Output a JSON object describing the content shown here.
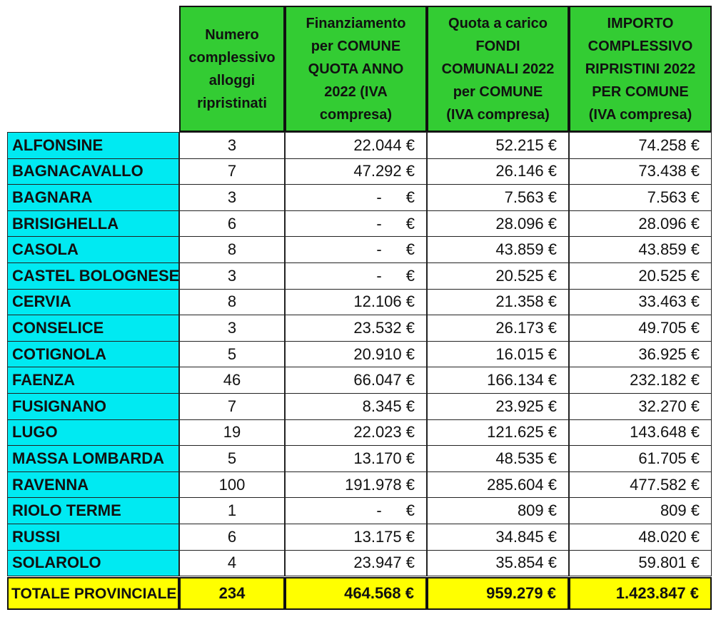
{
  "headers": [
    "",
    "Numero\ncomplessivo\nalloggi\nripristinati",
    "Finanziamento\nper COMUNE\nQUOTA ANNO\n2022 (IVA\ncompresa)",
    "Quota a carico\nFONDI\nCOMUNALI 2022\nper COMUNE\n(IVA compresa)",
    "IMPORTO\nCOMPLESSIVO\nRIPRISTINI 2022\nPER COMUNE\n(IVA compresa)"
  ],
  "rows": [
    {
      "comune": "ALFONSINE",
      "alloggi": "3",
      "finanziamento": "22.044 €",
      "quota": "52.215 €",
      "importo": "74.258 €"
    },
    {
      "comune": "BAGNACAVALLO",
      "alloggi": "7",
      "finanziamento": "47.292 €",
      "quota": "26.146 €",
      "importo": "73.438 €"
    },
    {
      "comune": "BAGNARA",
      "alloggi": "3",
      "finanziamento": "-",
      "quota": "7.563 €",
      "importo": "7.563 €"
    },
    {
      "comune": "BRISIGHELLA",
      "alloggi": "6",
      "finanziamento": "-",
      "quota": "28.096 €",
      "importo": "28.096 €"
    },
    {
      "comune": "CASOLA",
      "alloggi": "8",
      "finanziamento": "-",
      "quota": "43.859 €",
      "importo": "43.859 €"
    },
    {
      "comune": "CASTEL BOLOGNESE",
      "alloggi": "3",
      "finanziamento": "-",
      "quota": "20.525 €",
      "importo": "20.525 €"
    },
    {
      "comune": "CERVIA",
      "alloggi": "8",
      "finanziamento": "12.106 €",
      "quota": "21.358 €",
      "importo": "33.463 €"
    },
    {
      "comune": "CONSELICE",
      "alloggi": "3",
      "finanziamento": "23.532 €",
      "quota": "26.173 €",
      "importo": "49.705 €"
    },
    {
      "comune": "COTIGNOLA",
      "alloggi": "5",
      "finanziamento": "20.910 €",
      "quota": "16.015 €",
      "importo": "36.925 €"
    },
    {
      "comune": "FAENZA",
      "alloggi": "46",
      "finanziamento": "66.047 €",
      "quota": "166.134 €",
      "importo": "232.182 €"
    },
    {
      "comune": "FUSIGNANO",
      "alloggi": "7",
      "finanziamento": "8.345 €",
      "quota": "23.925 €",
      "importo": "32.270 €"
    },
    {
      "comune": "LUGO",
      "alloggi": "19",
      "finanziamento": "22.023 €",
      "quota": "121.625 €",
      "importo": "143.648 €"
    },
    {
      "comune": "MASSA LOMBARDA",
      "alloggi": "5",
      "finanziamento": "13.170 €",
      "quota": "48.535 €",
      "importo": "61.705 €"
    },
    {
      "comune": "RAVENNA",
      "alloggi": "100",
      "finanziamento": "191.978 €",
      "quota": "285.604 €",
      "importo": "477.582 €"
    },
    {
      "comune": "RIOLO TERME",
      "alloggi": "1",
      "finanziamento": "-",
      "quota": "809 €",
      "importo": "809 €"
    },
    {
      "comune": "RUSSI",
      "alloggi": "6",
      "finanziamento": "13.175 €",
      "quota": "34.845 €",
      "importo": "48.020 €"
    },
    {
      "comune": "SOLAROLO",
      "alloggi": "4",
      "finanziamento": "23.947 €",
      "quota": "35.854 €",
      "importo": "59.801 €"
    }
  ],
  "totals": {
    "comune": "TOTALE PROVINCIALE",
    "alloggi": "234",
    "finanziamento": "464.568 €",
    "quota": "959.279 €",
    "importo": "1.423.847 €"
  },
  "currency_symbol": "€",
  "colors": {
    "header_bg": "#33cc33",
    "name_bg": "#00eaf2",
    "total_bg": "#ffff00"
  }
}
